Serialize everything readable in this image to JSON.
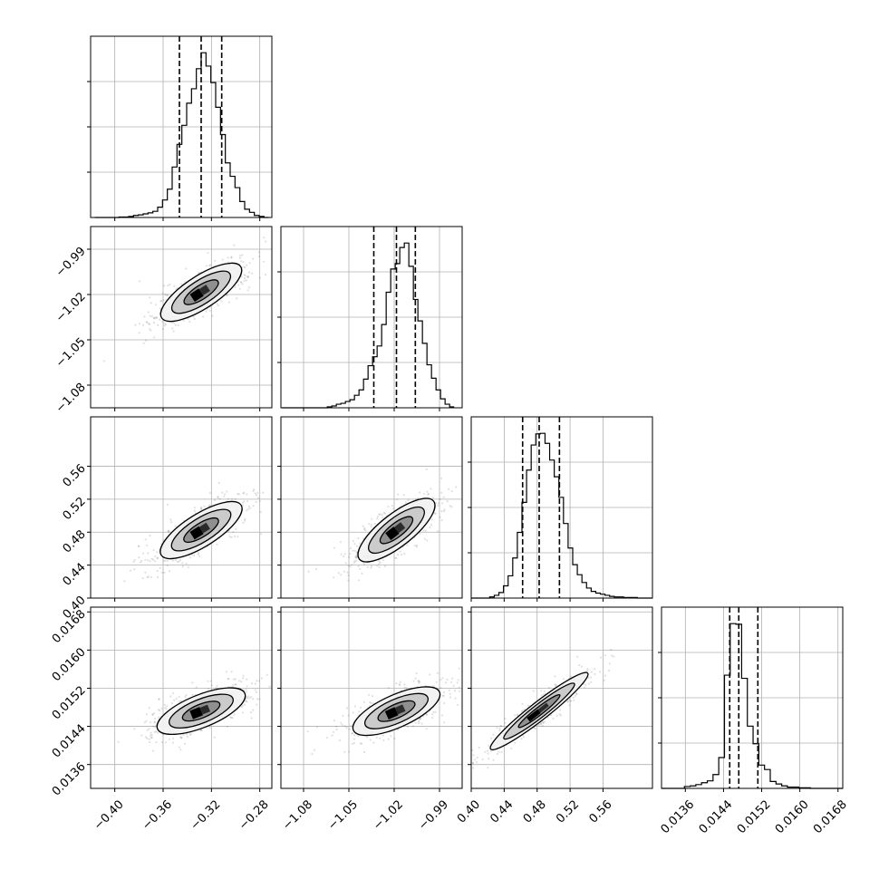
{
  "chart_data": {
    "type": "corner",
    "parameters": [
      {
        "range": [
          -0.42,
          -0.27
        ],
        "ticks": [
          -0.4,
          -0.36,
          -0.32,
          -0.28
        ],
        "tick_labels": [
          "−0.40",
          "−0.36",
          "−0.32",
          "−0.28"
        ],
        "quantiles": [
          -0.3465,
          -0.3285,
          -0.3115
        ],
        "histogram": {
          "edges": [
            -0.4165,
            -0.4125,
            -0.4085,
            -0.4045,
            -0.4005,
            -0.3965,
            -0.3925,
            -0.3885,
            -0.3845,
            -0.3805,
            -0.3765,
            -0.3725,
            -0.3685,
            -0.3645,
            -0.3605,
            -0.3565,
            -0.3525,
            -0.3485,
            -0.3445,
            -0.3405,
            -0.3365,
            -0.3325,
            -0.3285,
            -0.3245,
            -0.3205,
            -0.3165,
            -0.3125,
            -0.3085,
            -0.3045,
            -0.3005,
            -0.2965,
            -0.2925,
            -0.2885,
            -0.2845,
            -0.2805,
            -0.2765,
            -0.2725
          ],
          "counts": [
            0,
            0,
            0,
            0,
            0,
            1,
            1,
            2,
            4,
            5,
            7,
            9,
            12,
            20,
            34,
            55,
            98,
            142,
            179,
            222,
            250,
            289,
            320,
            294,
            262,
            214,
            161,
            106,
            80,
            58,
            31,
            16,
            10,
            4,
            2,
            0
          ]
        }
      },
      {
        "range": [
          -1.095,
          -0.975
        ],
        "ticks": [
          -1.08,
          -1.05,
          -1.02,
          -0.99
        ],
        "tick_labels": [
          "−1.08",
          "−1.05",
          "−1.02",
          "−0.99"
        ],
        "quantiles": [
          -1.0335,
          -1.0185,
          -1.006
        ],
        "histogram": {
          "edges": [
            -1.0943,
            -1.0913,
            -1.0883,
            -1.0853,
            -1.0823,
            -1.0793,
            -1.0763,
            -1.0733,
            -1.0703,
            -1.0673,
            -1.0643,
            -1.0613,
            -1.0583,
            -1.0553,
            -1.0523,
            -1.0493,
            -1.0463,
            -1.0433,
            -1.0403,
            -1.0373,
            -1.0343,
            -1.0313,
            -1.0283,
            -1.0253,
            -1.0223,
            -1.0193,
            -1.0163,
            -1.0133,
            -1.0103,
            -1.0073,
            -1.0043,
            -1.0013,
            -0.9983,
            -0.9953,
            -0.9923,
            -0.9893,
            -0.9863,
            -0.9833,
            -0.9803
          ],
          "counts": [
            0,
            0,
            0,
            0,
            0,
            0,
            0,
            0,
            0,
            0,
            1,
            2,
            4,
            5,
            7,
            9,
            14,
            20,
            32,
            47,
            57,
            69,
            93,
            129,
            155,
            161,
            179,
            184,
            158,
            121,
            97,
            72,
            48,
            33,
            20,
            10,
            4,
            1
          ]
        }
      },
      {
        "range": [
          0.4,
          0.62
        ],
        "ticks": [
          0.4,
          0.44,
          0.48,
          0.52,
          0.56
        ],
        "tick_labels": [
          "0.40",
          "0.44",
          "0.48",
          "0.52",
          "0.56"
        ],
        "quantiles": [
          0.4624,
          0.4825,
          0.5071
        ],
        "histogram": {
          "edges": [
            0.4,
            0.4056,
            0.4112,
            0.4168,
            0.4224,
            0.428,
            0.4336,
            0.4392,
            0.4448,
            0.4504,
            0.456,
            0.4616,
            0.4672,
            0.4728,
            0.4784,
            0.484,
            0.4896,
            0.4952,
            0.5008,
            0.5064,
            0.512,
            0.5176,
            0.5232,
            0.5288,
            0.5344,
            0.54,
            0.5456,
            0.5512,
            0.5568,
            0.5624,
            0.568,
            0.5736,
            0.5792,
            0.5848,
            0.5904,
            0.596,
            0.6016,
            0.6072,
            0.6128,
            0.62
          ],
          "counts": [
            0,
            0,
            0,
            0,
            2,
            5,
            10,
            22,
            40,
            72,
            118,
            172,
            230,
            275,
            295,
            296,
            278,
            248,
            218,
            181,
            134,
            90,
            60,
            42,
            28,
            18,
            12,
            9,
            7,
            5,
            3,
            2,
            2,
            1,
            1,
            1,
            0,
            0,
            0
          ]
        }
      },
      {
        "range": [
          0.0131,
          0.0169
        ],
        "ticks": [
          0.0136,
          0.0144,
          0.0152,
          0.016,
          0.0168
        ],
        "tick_labels": [
          "0.0136",
          "0.0144",
          "0.0152",
          "0.0160",
          "0.0168"
        ],
        "quantiles": [
          0.01453,
          0.01472,
          0.01512
        ],
        "histogram": {
          "edges": [
            0.0131,
            0.01322,
            0.01334,
            0.01346,
            0.01358,
            0.0137,
            0.01382,
            0.01394,
            0.01406,
            0.01418,
            0.0143,
            0.01442,
            0.01454,
            0.01466,
            0.01478,
            0.0149,
            0.01502,
            0.01514,
            0.01526,
            0.01538,
            0.0155,
            0.01562,
            0.01574,
            0.01586,
            0.01598,
            0.0161,
            0.01622,
            0.01634,
            0.01646,
            0.01658,
            0.0167,
            0.0169
          ],
          "counts": [
            0,
            0,
            0,
            0,
            3,
            4,
            6,
            9,
            12,
            22,
            49,
            180,
            262,
            261,
            175,
            99,
            71,
            37,
            30,
            11,
            7,
            4,
            2,
            2,
            1,
            1,
            0,
            0,
            0,
            0,
            0
          ]
        }
      }
    ],
    "density_contour_levels": 3,
    "grid": true
  }
}
